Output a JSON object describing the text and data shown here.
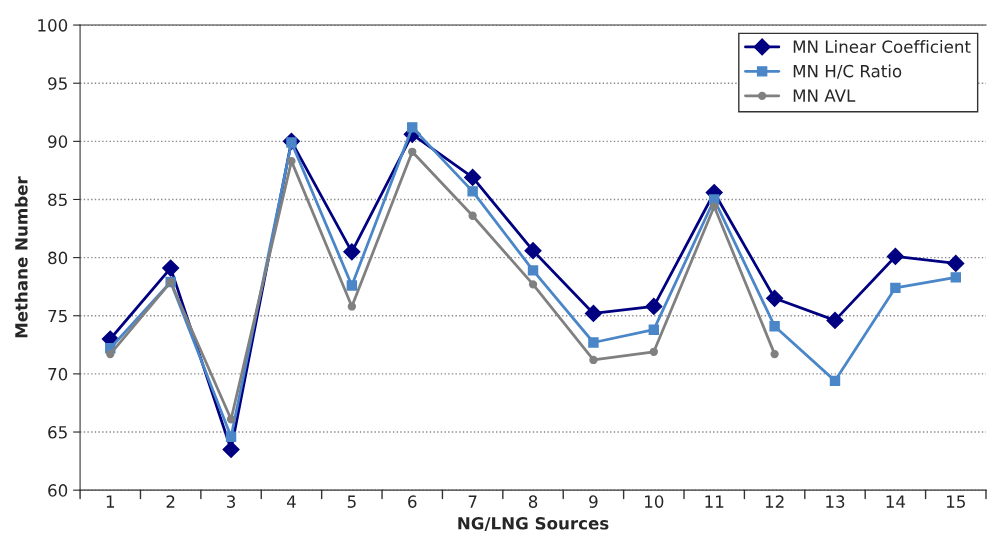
{
  "chart_data": {
    "type": "line",
    "xlabel": "NG/LNG Sources",
    "ylabel": "Methane Number",
    "categories": [
      "1",
      "2",
      "3",
      "4",
      "5",
      "6",
      "7",
      "8",
      "9",
      "10",
      "11",
      "12",
      "13",
      "14",
      "15"
    ],
    "series": [
      {
        "name": "MN Linear Coefficient",
        "color": "#000080",
        "marker": "diamond",
        "values": [
          73.0,
          79.1,
          63.5,
          90.0,
          80.5,
          90.6,
          86.9,
          80.6,
          75.2,
          75.8,
          85.6,
          76.5,
          74.6,
          80.1,
          79.5
        ]
      },
      {
        "name": "MN H/C Ratio",
        "color": "#4a86c8",
        "marker": "square",
        "values": [
          72.2,
          77.9,
          64.6,
          89.9,
          77.6,
          91.2,
          85.7,
          78.9,
          72.7,
          73.8,
          85.0,
          74.1,
          69.4,
          77.4,
          78.3
        ]
      },
      {
        "name": "MN AVL",
        "color": "#808080",
        "marker": "circle",
        "values": [
          71.7,
          77.9,
          66.1,
          88.3,
          75.8,
          89.1,
          83.6,
          77.7,
          71.2,
          71.9,
          84.4,
          71.7,
          null,
          null,
          null
        ]
      }
    ],
    "ylim": [
      60,
      100
    ],
    "yticks": [
      60,
      65,
      70,
      75,
      80,
      85,
      90,
      95,
      100
    ],
    "grid": "y",
    "legend": "top right",
    "line_style": "solid"
  }
}
